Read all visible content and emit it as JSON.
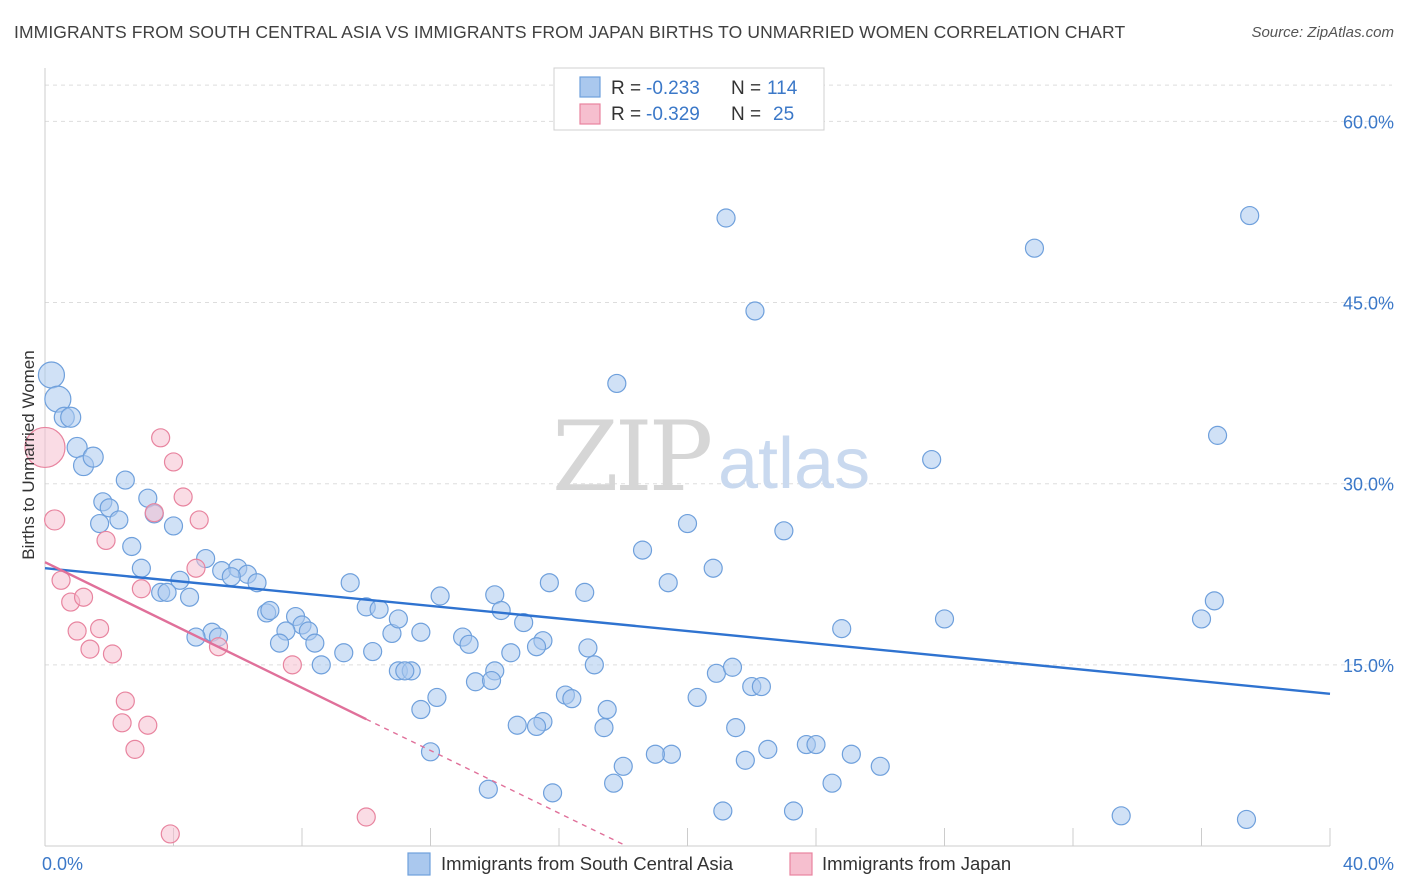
{
  "title": "IMMIGRANTS FROM SOUTH CENTRAL ASIA VS IMMIGRANTS FROM JAPAN BIRTHS TO UNMARRIED WOMEN CORRELATION CHART",
  "source": "Source: ZipAtlas.com",
  "watermark": {
    "zip": "ZIP",
    "atlas": "atlas"
  },
  "colors": {
    "blue": "#6fa0dc",
    "blue_fill": "#aac8ee",
    "blue_line": "#2f73d0",
    "pink": "#e8849f",
    "pink_fill": "#f6bfcf",
    "pink_line": "#e0709a",
    "tick": "#3b78c8",
    "grid": "#dddddd"
  },
  "legend": {
    "r_label": "R =",
    "n_label": "N =",
    "entries": [
      {
        "series": "blue",
        "r": "-0.233",
        "n": "114"
      },
      {
        "series": "pink",
        "r": "-0.329",
        "n": "25"
      }
    ]
  },
  "bottom_legend": [
    "Immigrants from South Central Asia",
    "Immigrants from Japan"
  ],
  "chart_data": {
    "type": "scatter",
    "title": "IMMIGRANTS FROM SOUTH CENTRAL ASIA VS IMMIGRANTS FROM JAPAN BIRTHS TO UNMARRIED WOMEN CORRELATION CHART",
    "xlabel": "",
    "ylabel": "Births to Unmarried Women",
    "xlim": [
      0,
      40
    ],
    "ylim": [
      0,
      65
    ],
    "x_tick_labels": [
      "0.0%",
      "40.0%"
    ],
    "y_ticks": [
      15,
      30,
      45,
      60
    ],
    "y_tick_labels": [
      "15.0%",
      "30.0%",
      "45.0%",
      "60.0%"
    ],
    "grid": true,
    "series": [
      {
        "name": "Immigrants from South Central Asia",
        "color": "blue",
        "r": -0.233,
        "n": 114,
        "trend": {
          "x": [
            0,
            40
          ],
          "y": [
            23.0,
            12.6
          ],
          "dashed_to": null
        },
        "points": [
          [
            0.2,
            39.0,
            13
          ],
          [
            0.4,
            37.0,
            13
          ],
          [
            0.6,
            35.5,
            10
          ],
          [
            0.8,
            35.5,
            10
          ],
          [
            1.0,
            33.0,
            10
          ],
          [
            1.2,
            31.5,
            10
          ],
          [
            1.5,
            32.2,
            10
          ],
          [
            1.8,
            28.5,
            9
          ],
          [
            2.0,
            28.0,
            9
          ],
          [
            1.7,
            26.7,
            9
          ],
          [
            2.3,
            27.0,
            9
          ],
          [
            2.5,
            30.3,
            9
          ],
          [
            3.2,
            28.8,
            9
          ],
          [
            3.4,
            27.5,
            9
          ],
          [
            4.0,
            26.5,
            9
          ],
          [
            2.7,
            24.8,
            9
          ],
          [
            3.0,
            23.0,
            9
          ],
          [
            4.2,
            22.0,
            9
          ],
          [
            5.0,
            23.8,
            9
          ],
          [
            5.5,
            22.8,
            9
          ],
          [
            6.0,
            23.0,
            9
          ],
          [
            6.3,
            22.5,
            9
          ],
          [
            5.8,
            22.3,
            9
          ],
          [
            6.6,
            21.8,
            9
          ],
          [
            3.6,
            21.0,
            9
          ],
          [
            3.8,
            21.0,
            9
          ],
          [
            4.5,
            20.6,
            9
          ],
          [
            6.9,
            19.3,
            9
          ],
          [
            7.0,
            19.5,
            9
          ],
          [
            7.8,
            19.0,
            9
          ],
          [
            8.0,
            18.3,
            9
          ],
          [
            8.2,
            17.8,
            9
          ],
          [
            7.5,
            17.8,
            9
          ],
          [
            5.2,
            17.7,
            9
          ],
          [
            5.4,
            17.3,
            9
          ],
          [
            4.7,
            17.3,
            9
          ],
          [
            7.3,
            16.8,
            9
          ],
          [
            8.4,
            16.8,
            9
          ],
          [
            9.5,
            21.8,
            9
          ],
          [
            10.0,
            19.8,
            9
          ],
          [
            10.4,
            19.6,
            9
          ],
          [
            10.8,
            17.6,
            9
          ],
          [
            11.0,
            18.8,
            9
          ],
          [
            11.7,
            17.7,
            9
          ],
          [
            9.3,
            16.0,
            9
          ],
          [
            10.2,
            16.1,
            9
          ],
          [
            8.6,
            15.0,
            9
          ],
          [
            11.0,
            14.5,
            9
          ],
          [
            11.4,
            14.5,
            9
          ],
          [
            11.2,
            14.5,
            9
          ],
          [
            12.3,
            20.7,
            9
          ],
          [
            13.0,
            17.3,
            9
          ],
          [
            13.2,
            16.7,
            9
          ],
          [
            13.4,
            13.6,
            9
          ],
          [
            14.0,
            20.8,
            9
          ],
          [
            14.2,
            19.5,
            9
          ],
          [
            14.0,
            14.5,
            9
          ],
          [
            14.5,
            16.0,
            9
          ],
          [
            14.9,
            18.5,
            9
          ],
          [
            15.5,
            17.0,
            9
          ],
          [
            15.3,
            16.5,
            9
          ],
          [
            15.7,
            21.8,
            9
          ],
          [
            16.8,
            21.0,
            9
          ],
          [
            16.2,
            12.5,
            9
          ],
          [
            16.4,
            12.2,
            9
          ],
          [
            16.9,
            16.4,
            9
          ],
          [
            17.5,
            11.3,
            9
          ],
          [
            17.4,
            9.8,
            9
          ],
          [
            18.0,
            6.6,
            9
          ],
          [
            17.7,
            5.2,
            9
          ],
          [
            17.1,
            15.0,
            9
          ],
          [
            14.7,
            10.0,
            9
          ],
          [
            15.5,
            10.3,
            9
          ],
          [
            15.3,
            9.9,
            9
          ],
          [
            13.9,
            13.7,
            9
          ],
          [
            12.2,
            12.3,
            9
          ],
          [
            12.0,
            7.8,
            9
          ],
          [
            13.8,
            4.7,
            9
          ],
          [
            15.8,
            4.4,
            9
          ],
          [
            11.7,
            11.3,
            9
          ],
          [
            17.8,
            38.3,
            9
          ],
          [
            18.6,
            24.5,
            9
          ],
          [
            19.4,
            21.8,
            9
          ],
          [
            19.5,
            7.6,
            9
          ],
          [
            20.3,
            12.3,
            9
          ],
          [
            19.0,
            7.6,
            9
          ],
          [
            20.0,
            26.7,
            9
          ],
          [
            20.8,
            23.0,
            9
          ],
          [
            20.9,
            14.3,
            9
          ],
          [
            21.1,
            2.9,
            9
          ],
          [
            21.4,
            14.8,
            9
          ],
          [
            21.5,
            9.8,
            9
          ],
          [
            21.8,
            7.1,
            9
          ],
          [
            22.0,
            13.2,
            9
          ],
          [
            22.3,
            13.2,
            9
          ],
          [
            21.2,
            52.0,
            9
          ],
          [
            22.1,
            44.3,
            9
          ],
          [
            22.5,
            8.0,
            9
          ],
          [
            23.0,
            26.1,
            9
          ],
          [
            23.3,
            2.9,
            9
          ],
          [
            23.7,
            8.4,
            9
          ],
          [
            24.0,
            8.4,
            9
          ],
          [
            24.5,
            5.2,
            9
          ],
          [
            24.8,
            18.0,
            9
          ],
          [
            25.1,
            7.6,
            9
          ],
          [
            26.0,
            6.6,
            9
          ],
          [
            27.6,
            32.0,
            9
          ],
          [
            28.0,
            18.8,
            9
          ],
          [
            30.8,
            49.5,
            9
          ],
          [
            33.5,
            2.5,
            9
          ],
          [
            36.0,
            18.8,
            9
          ],
          [
            36.4,
            20.3,
            9
          ],
          [
            36.5,
            34.0,
            9
          ],
          [
            37.5,
            52.2,
            9
          ],
          [
            37.4,
            2.2,
            9
          ]
        ]
      },
      {
        "name": "Immigrants from Japan",
        "color": "pink",
        "r": -0.329,
        "n": 25,
        "trend": {
          "x": [
            0,
            10
          ],
          "y": [
            23.5,
            10.5
          ],
          "dashed_to": [
            18.1,
            0
          ]
        },
        "points": [
          [
            0.0,
            33.0,
            20
          ],
          [
            0.3,
            27.0,
            10
          ],
          [
            0.5,
            22.0,
            9
          ],
          [
            0.8,
            20.2,
            9
          ],
          [
            1.2,
            20.6,
            9
          ],
          [
            1.0,
            17.8,
            9
          ],
          [
            1.4,
            16.3,
            9
          ],
          [
            1.7,
            18.0,
            9
          ],
          [
            2.1,
            15.9,
            9
          ],
          [
            1.9,
            25.3,
            9
          ],
          [
            2.5,
            12.0,
            9
          ],
          [
            2.4,
            10.2,
            9
          ],
          [
            2.8,
            8.0,
            9
          ],
          [
            3.2,
            10.0,
            9
          ],
          [
            3.0,
            21.3,
            9
          ],
          [
            3.4,
            27.6,
            9
          ],
          [
            3.6,
            33.8,
            9
          ],
          [
            4.0,
            31.8,
            9
          ],
          [
            4.3,
            28.9,
            9
          ],
          [
            4.8,
            27.0,
            9
          ],
          [
            4.7,
            23.0,
            9
          ],
          [
            5.4,
            16.5,
            9
          ],
          [
            7.7,
            15.0,
            9
          ],
          [
            10.0,
            2.4,
            9
          ],
          [
            3.9,
            1.0,
            9
          ]
        ]
      }
    ]
  }
}
